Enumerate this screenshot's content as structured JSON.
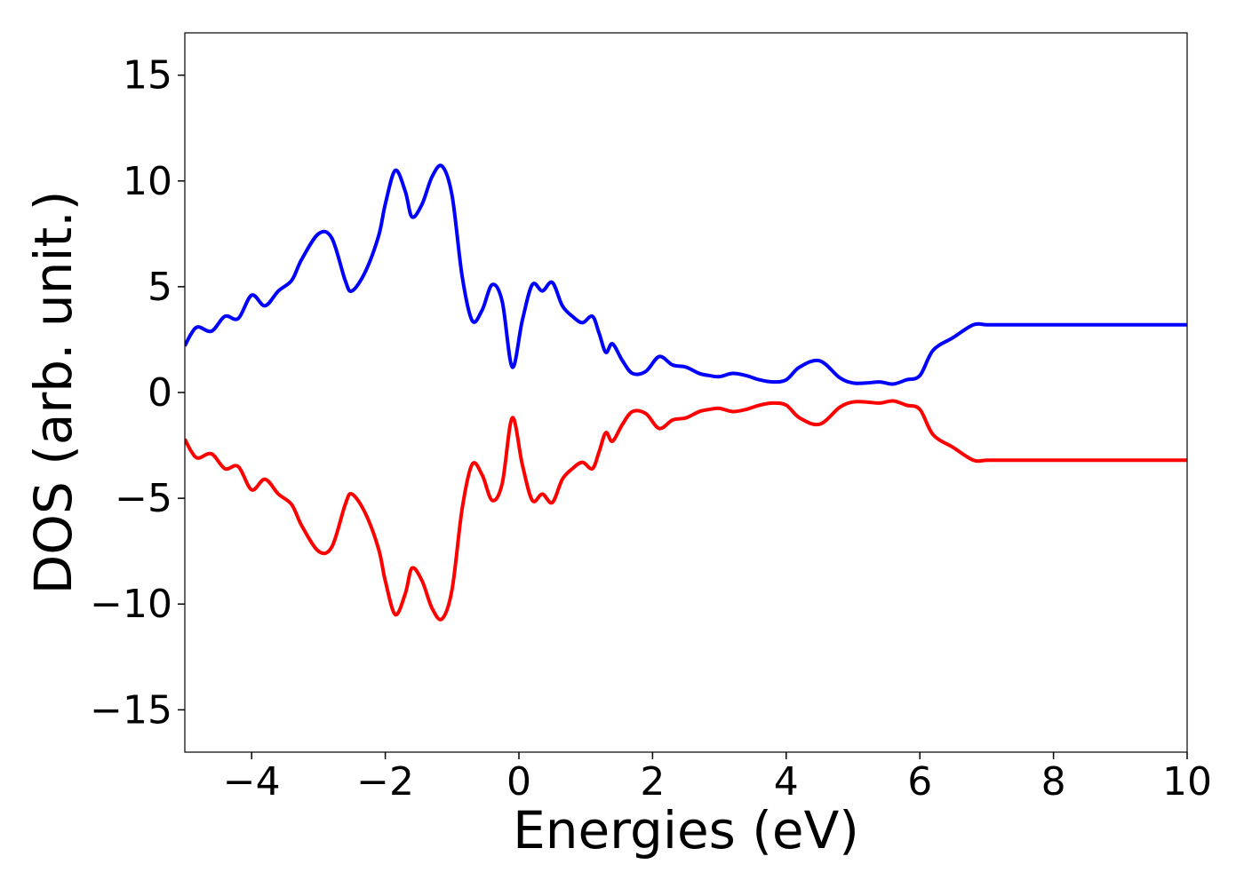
{
  "chart_data": {
    "type": "line",
    "title": "",
    "xlabel": "Energies (eV)",
    "ylabel": "DOS (arb. unit.)",
    "xlim": [
      -5,
      10
    ],
    "ylim": [
      -17,
      17
    ],
    "xticks": [
      -4,
      -2,
      0,
      2,
      4,
      6,
      8,
      10
    ],
    "xtick_labels": [
      "−4",
      "−2",
      "0",
      "2",
      "4",
      "6",
      "8",
      "10"
    ],
    "yticks": [
      -15,
      -10,
      -5,
      0,
      5,
      10,
      15
    ],
    "ytick_labels": [
      "−15",
      "−10",
      "−5",
      "0",
      "5",
      "10",
      "15"
    ],
    "grid": false,
    "legend": "none",
    "x": [
      -5.0,
      -4.9,
      -4.8,
      -4.6,
      -4.4,
      -4.2,
      -4.0,
      -3.8,
      -3.6,
      -3.4,
      -3.25,
      -3.0,
      -2.8,
      -2.6,
      -2.5,
      -2.3,
      -2.1,
      -2.0,
      -1.85,
      -1.7,
      -1.6,
      -1.45,
      -1.3,
      -1.15,
      -1.0,
      -0.85,
      -0.7,
      -0.55,
      -0.4,
      -0.25,
      -0.1,
      0.05,
      0.2,
      0.35,
      0.5,
      0.65,
      0.8,
      0.95,
      1.1,
      1.2,
      1.3,
      1.4,
      1.55,
      1.7,
      1.9,
      2.1,
      2.3,
      2.5,
      2.7,
      2.85,
      3.0,
      3.2,
      3.4,
      3.6,
      3.8,
      4.0,
      4.2,
      4.5,
      4.8,
      5.0,
      5.2,
      5.4,
      5.6,
      5.8,
      6.0,
      6.2,
      6.5,
      6.8,
      7.0,
      7.2,
      7.35,
      7.6,
      7.8,
      8.0,
      8.2,
      8.5,
      8.8,
      9.0,
      9.2,
      9.4,
      9.6,
      9.8,
      10.0
    ],
    "series": [
      {
        "color": "#0000ff",
        "values": [
          2.2,
          2.8,
          3.1,
          2.9,
          3.6,
          3.5,
          4.6,
          4.1,
          4.8,
          5.3,
          6.3,
          7.5,
          7.3,
          5.3,
          4.8,
          5.7,
          7.4,
          8.9,
          10.5,
          9.5,
          8.3,
          8.9,
          10.2,
          10.7,
          9.3,
          5.5,
          3.4,
          3.9,
          5.1,
          4.3,
          1.2,
          3.4,
          5.1,
          4.8,
          5.2,
          4.1,
          3.6,
          3.3,
          3.6,
          2.8,
          1.9,
          2.3,
          1.5,
          0.9,
          1.0,
          1.7,
          1.3,
          1.2,
          0.9,
          0.8,
          0.75,
          0.9,
          0.8,
          0.6,
          0.5,
          0.6,
          1.2,
          1.5,
          0.7,
          0.45,
          0.45,
          0.5,
          0.4,
          0.6,
          0.8,
          2.0,
          2.6,
          3.2,
          3.2,
          3.2,
          3.2,
          3.2,
          3.2,
          3.2,
          3.2,
          3.2,
          3.2,
          3.2,
          3.2,
          3.2,
          3.2,
          3.2,
          3.2
        ]
      },
      {
        "color": "#ff0000",
        "values": [
          -2.2,
          -2.8,
          -3.1,
          -2.9,
          -3.6,
          -3.5,
          -4.6,
          -4.1,
          -4.8,
          -5.3,
          -6.3,
          -7.5,
          -7.3,
          -5.3,
          -4.8,
          -5.7,
          -7.4,
          -8.9,
          -10.5,
          -9.5,
          -8.3,
          -8.9,
          -10.2,
          -10.7,
          -9.3,
          -5.5,
          -3.4,
          -3.9,
          -5.1,
          -4.3,
          -1.2,
          -3.4,
          -5.1,
          -4.8,
          -5.2,
          -4.1,
          -3.6,
          -3.3,
          -3.6,
          -2.8,
          -1.9,
          -2.3,
          -1.5,
          -0.9,
          -1.0,
          -1.7,
          -1.3,
          -1.2,
          -0.9,
          -0.8,
          -0.75,
          -0.9,
          -0.8,
          -0.6,
          -0.5,
          -0.6,
          -1.2,
          -1.5,
          -0.7,
          -0.45,
          -0.45,
          -0.5,
          -0.4,
          -0.6,
          -0.8,
          -2.0,
          -2.6,
          -3.2,
          -3.2,
          -3.2,
          -3.2,
          -3.2,
          -3.2,
          -3.2,
          -3.2,
          -3.2,
          -3.2,
          -3.2,
          -3.2,
          -3.2,
          -3.2,
          -3.2,
          -3.2
        ]
      }
    ]
  }
}
